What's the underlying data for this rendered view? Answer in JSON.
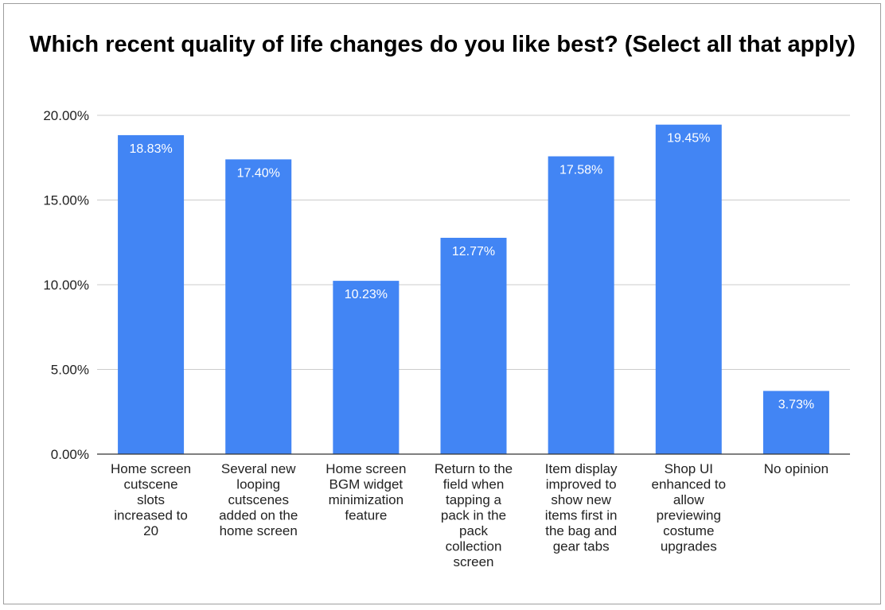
{
  "chart_data": {
    "type": "bar",
    "title": "Which recent quality of life changes do you like best? (Select all that apply)",
    "categories": [
      "Home screen cutscene slots increased to 20",
      "Several new looping cutscenes added on the home screen",
      "Home screen BGM widget minimization feature",
      "Return to the field when tapping a pack in the pack collection screen",
      "Item display improved to show new items first in the bag and gear tabs",
      "Shop UI enhanced to allow previewing costume upgrades",
      "No opinion"
    ],
    "category_lines": [
      [
        "Home screen",
        "cutscene",
        "slots",
        "increased to",
        "20"
      ],
      [
        "Several new",
        "looping",
        "cutscenes",
        "added on the",
        "home screen"
      ],
      [
        "Home screen",
        "BGM widget",
        "minimization",
        "feature"
      ],
      [
        "Return to the",
        "field when",
        "tapping a",
        "pack in the",
        "pack",
        "collection",
        "screen"
      ],
      [
        "Item display",
        "improved to",
        "show new",
        "items first in",
        "the bag and",
        "gear tabs"
      ],
      [
        "Shop UI",
        "enhanced to",
        "allow",
        "previewing",
        "costume",
        "upgrades"
      ],
      [
        "No opinion"
      ]
    ],
    "values": [
      18.83,
      17.4,
      10.23,
      12.77,
      17.58,
      19.45,
      3.73
    ],
    "data_labels": [
      "18.83%",
      "17.40%",
      "10.23%",
      "12.77%",
      "17.58%",
      "19.45%",
      "3.73%"
    ],
    "yticks": [
      0,
      5,
      10,
      15,
      20
    ],
    "ytick_labels": [
      "0.00%",
      "5.00%",
      "10.00%",
      "15.00%",
      "20.00%"
    ],
    "ylim": [
      0,
      20
    ],
    "grid": true,
    "legend": "none",
    "bar_color": "#4285f4",
    "xlabel": "",
    "ylabel": ""
  }
}
